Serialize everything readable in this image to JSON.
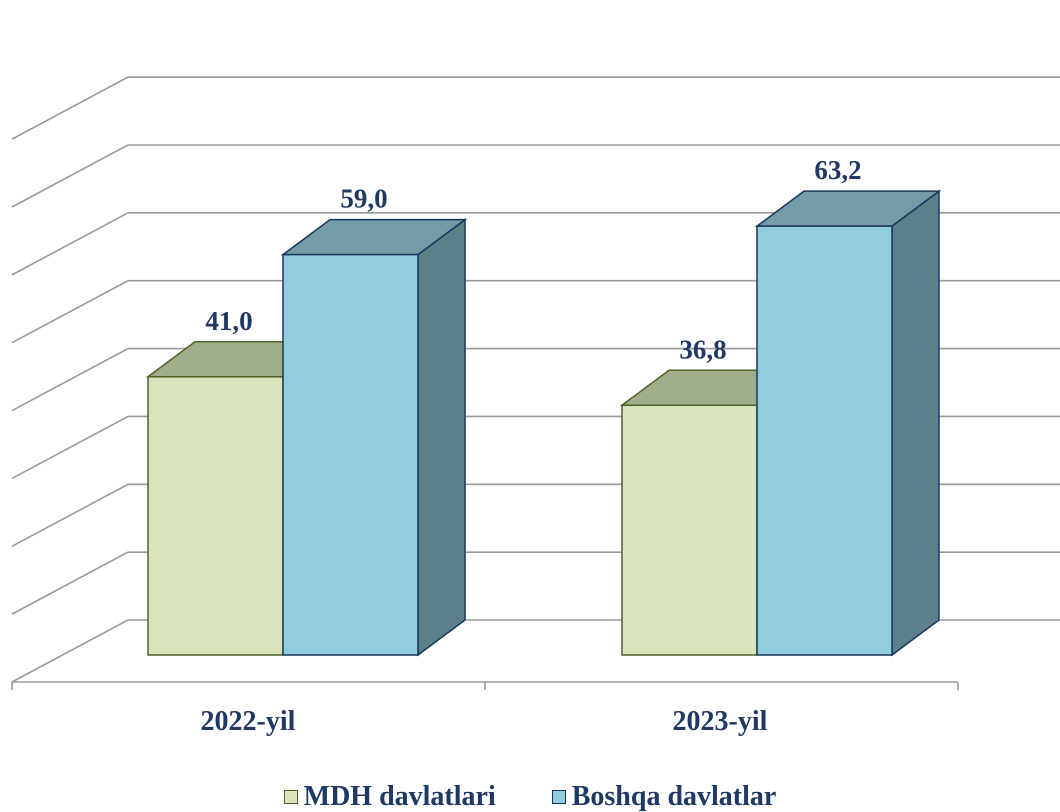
{
  "chart_data": {
    "type": "bar",
    "style": "3d-clustered-column",
    "categories": [
      "2022-yil",
      "2023-yil"
    ],
    "series": [
      {
        "name": "MDH davlatlari",
        "values": [
          41.0,
          36.8
        ],
        "labels": [
          "41,0",
          "36,8"
        ],
        "color": "#d7e4bd",
        "top_color": "#a0ae8c",
        "border_color": "#4f6228"
      },
      {
        "name": "Boshqa davlatlar",
        "values": [
          59.0,
          63.2
        ],
        "labels": [
          "59,0",
          "63,2"
        ],
        "color": "#92cddc",
        "top_color": "#739ca7",
        "side_color": "#5e808b",
        "border_color": "#17375e"
      }
    ],
    "ylim": [
      0,
      70
    ],
    "y_step": 10,
    "y_tick_labels_visible": false,
    "grid": true,
    "legend": "bottom",
    "label_color": "#1f3864",
    "grid_color": "#9a9a9a"
  }
}
